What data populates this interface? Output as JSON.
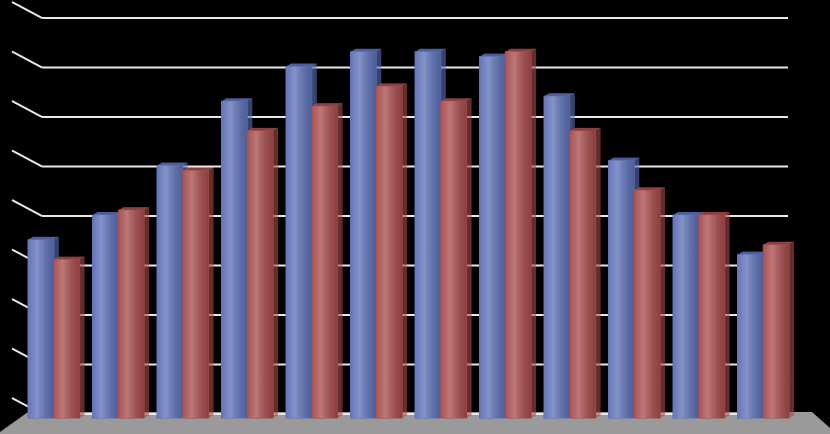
{
  "chart_data": {
    "type": "bar",
    "categories": [
      null,
      null,
      null,
      null,
      null,
      null,
      null,
      null,
      null,
      null,
      null,
      null
    ],
    "series": [
      {
        "color": "#5b6fb6",
        "values": [
          3.6,
          4.1,
          5.1,
          6.4,
          7.1,
          7.4,
          7.4,
          7.3,
          6.5,
          5.2,
          4.1,
          3.3
        ]
      },
      {
        "color": "#a64a4a",
        "values": [
          3.2,
          4.2,
          5.0,
          5.8,
          6.3,
          6.7,
          6.4,
          7.4,
          5.8,
          4.6,
          4.1,
          3.5
        ]
      }
    ],
    "ylim": [
      0,
      8
    ],
    "yticks": [
      0,
      1,
      2,
      3,
      4,
      5,
      6,
      7,
      8
    ],
    "grid": true
  }
}
